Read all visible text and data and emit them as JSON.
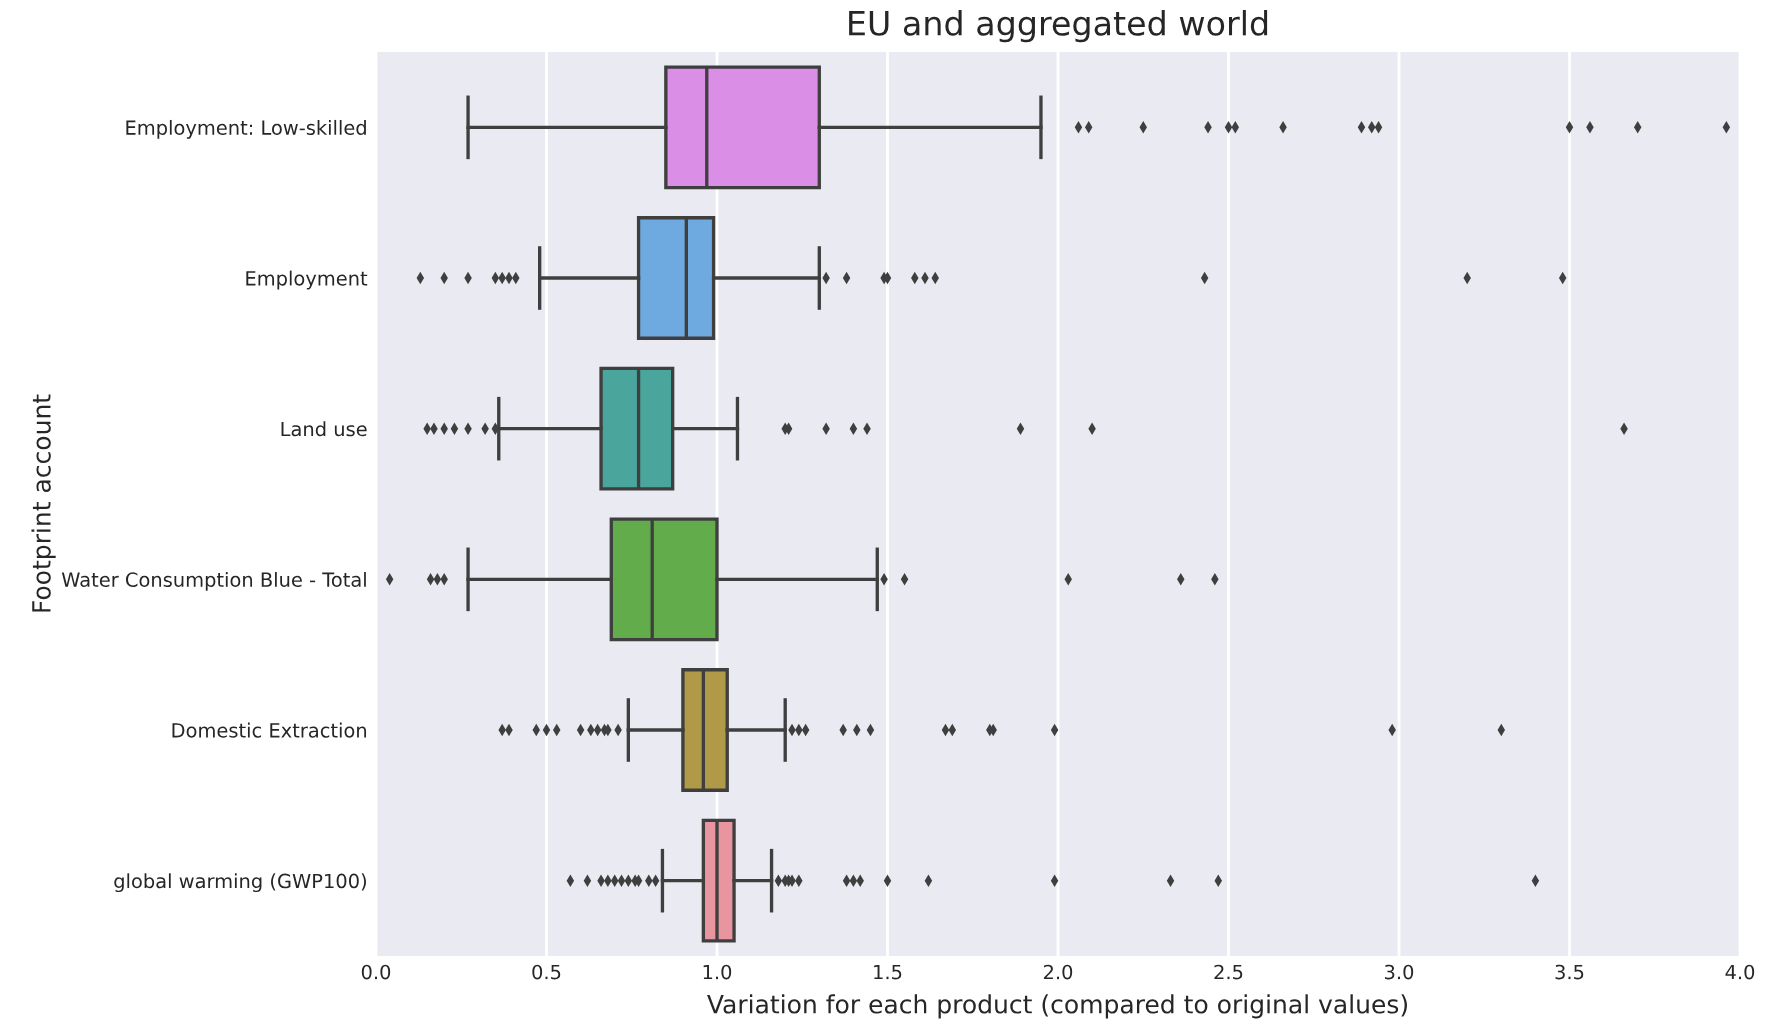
{
  "chart_data": {
    "type": "box",
    "orientation": "horizontal",
    "title": "EU and aggregated world",
    "xlabel": "Variation for each product (compared to original values)",
    "ylabel": "Footprint account",
    "categories": [
      "Employment: Low-skilled",
      "Employment",
      "Land use",
      "Water Consumption Blue - Total",
      "Domestic Extraction",
      "global warming (GWP100)"
    ],
    "colors": [
      "#db8ee6",
      "#6eaadf",
      "#4aa69d",
      "#62ac4c",
      "#b19a47",
      "#e9959f"
    ],
    "boxes": [
      {
        "low": 0.27,
        "q1": 0.85,
        "median": 0.97,
        "q3": 1.3,
        "high": 1.95,
        "outliers": [
          2.06,
          2.09,
          2.25,
          2.44,
          2.5,
          2.52,
          2.66,
          2.89,
          2.92,
          2.94,
          3.5,
          3.56,
          3.7,
          3.96
        ]
      },
      {
        "low": 0.48,
        "q1": 0.77,
        "median": 0.91,
        "q3": 0.99,
        "high": 1.3,
        "outliers": [
          0.13,
          0.2,
          0.27,
          0.35,
          0.37,
          0.39,
          0.41,
          1.32,
          1.38,
          1.49,
          1.5,
          1.58,
          1.61,
          1.64,
          2.43,
          3.2,
          3.48
        ]
      },
      {
        "low": 0.36,
        "q1": 0.66,
        "median": 0.77,
        "q3": 0.87,
        "high": 1.06,
        "outliers": [
          0.15,
          0.17,
          0.2,
          0.23,
          0.27,
          0.32,
          0.35,
          1.2,
          1.21,
          1.32,
          1.4,
          1.44,
          1.89,
          2.1,
          3.66
        ]
      },
      {
        "low": 0.27,
        "q1": 0.69,
        "median": 0.81,
        "q3": 1.0,
        "high": 1.47,
        "outliers": [
          0.04,
          0.16,
          0.18,
          0.2,
          1.49,
          1.55,
          2.03,
          2.36,
          2.46
        ]
      },
      {
        "low": 0.74,
        "q1": 0.9,
        "median": 0.96,
        "q3": 1.03,
        "high": 1.2,
        "outliers": [
          0.37,
          0.39,
          0.47,
          0.5,
          0.53,
          0.6,
          0.63,
          0.65,
          0.67,
          0.68,
          0.71,
          1.22,
          1.24,
          1.26,
          1.37,
          1.41,
          1.45,
          1.67,
          1.69,
          1.8,
          1.81,
          1.99,
          2.98,
          3.3
        ]
      },
      {
        "low": 0.84,
        "q1": 0.96,
        "median": 1.0,
        "q3": 1.05,
        "high": 1.16,
        "outliers": [
          0.57,
          0.62,
          0.66,
          0.68,
          0.7,
          0.72,
          0.74,
          0.76,
          0.77,
          0.8,
          0.82,
          1.18,
          1.2,
          1.21,
          1.22,
          1.24,
          1.38,
          1.4,
          1.42,
          1.5,
          1.62,
          1.99,
          2.33,
          2.47,
          3.4
        ]
      }
    ],
    "xlim": [
      0.0,
      4.0
    ],
    "xticks": [
      {
        "value": 0,
        "label": "0.0"
      },
      0.5,
      {
        "value": 1,
        "label": "1.0"
      },
      1.5,
      {
        "value": 2,
        "label": "2.0"
      },
      2.5,
      {
        "value": 3,
        "label": "3.0"
      },
      3.5,
      {
        "value": 4,
        "label": "4.0"
      }
    ],
    "grid": "x"
  }
}
